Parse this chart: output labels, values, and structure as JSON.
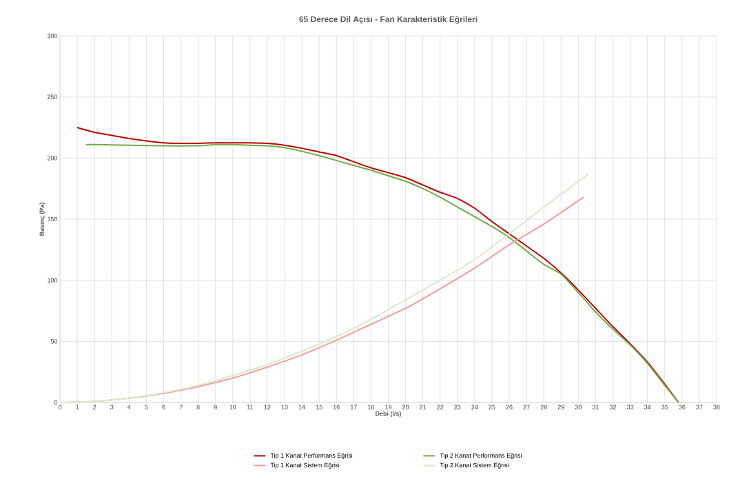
{
  "chart_data": {
    "type": "line",
    "title": "65 Derece Dil Açısı - Fan Karakteristik Eğrileri",
    "xlabel": "Debi (l/s)",
    "ylabel": "Basınç (Pa)",
    "xlim": [
      0,
      38
    ],
    "xticks": [
      0,
      1,
      2,
      3,
      4,
      5,
      6,
      7,
      8,
      9,
      10,
      11,
      12,
      13,
      14,
      15,
      16,
      17,
      18,
      19,
      20,
      21,
      22,
      23,
      24,
      25,
      26,
      27,
      28,
      29,
      30,
      31,
      32,
      33,
      34,
      35,
      36,
      37,
      38
    ],
    "ylim": [
      0,
      300
    ],
    "yticks": [
      0,
      50,
      100,
      150,
      200,
      250,
      300
    ],
    "grid": true,
    "legend": "bottom",
    "marker": "none",
    "line_style": "solid",
    "series": [
      {
        "name": "Tip 1 Kanat Performans Eğrisi",
        "color": "#c00000",
        "x": [
          1,
          2,
          3,
          4,
          5,
          6,
          7,
          8,
          9,
          10,
          11,
          12,
          13,
          14,
          15,
          16,
          17,
          18,
          19,
          20,
          21,
          22,
          23,
          24,
          25,
          26,
          27,
          28,
          29,
          30,
          31,
          32,
          33,
          34,
          35,
          35.8
        ],
        "values": [
          225,
          221,
          218.5,
          216,
          214,
          212.5,
          212,
          212,
          212.5,
          212.5,
          212.5,
          212,
          210.5,
          208,
          205,
          202,
          197,
          192,
          188,
          184,
          178,
          172,
          167,
          159,
          148,
          138,
          128,
          118,
          106,
          92,
          77,
          62,
          48,
          33,
          15,
          0
        ]
      },
      {
        "name": "Tip 2 Kanat Performans Eğrisi",
        "color": "#70ad47",
        "x": [
          1.5,
          2,
          4,
          6,
          8,
          9,
          10,
          11,
          12,
          13,
          14,
          15,
          16,
          17,
          18,
          19,
          20,
          21,
          22,
          23,
          24,
          25,
          26,
          27,
          28,
          29,
          30,
          31,
          32,
          33,
          34,
          35,
          35.8
        ],
        "values": [
          211,
          211,
          210.5,
          210,
          210,
          211,
          211,
          210.5,
          210,
          208.5,
          205.5,
          202,
          198,
          194,
          190,
          185.5,
          181,
          175,
          168,
          160,
          152,
          144,
          135,
          124,
          113,
          105,
          90,
          74,
          60,
          47,
          32,
          14,
          0
        ]
      },
      {
        "name": "Tip 1 Kanat Sistem Eğrisi",
        "color": "#ff9999",
        "x": [
          0.2,
          2,
          4,
          6,
          8,
          10,
          12,
          14,
          16,
          18,
          20,
          22,
          24,
          26,
          28,
          30.3
        ],
        "values": [
          0,
          1,
          3.5,
          7.5,
          13,
          20,
          29,
          39,
          51,
          64,
          77,
          93,
          110,
          129,
          146,
          168
        ]
      },
      {
        "name": "Tip 2 Kanat Sistem Eğrisi",
        "color": "#d9eac9",
        "x": [
          0.2,
          2,
          4,
          6,
          8,
          10,
          12,
          14,
          16,
          18,
          20,
          22,
          24,
          26,
          28,
          30.6
        ],
        "values": [
          0,
          1,
          3.5,
          8,
          14,
          22,
          31,
          42,
          54,
          68,
          84,
          100,
          117,
          138,
          160,
          187
        ]
      }
    ]
  }
}
